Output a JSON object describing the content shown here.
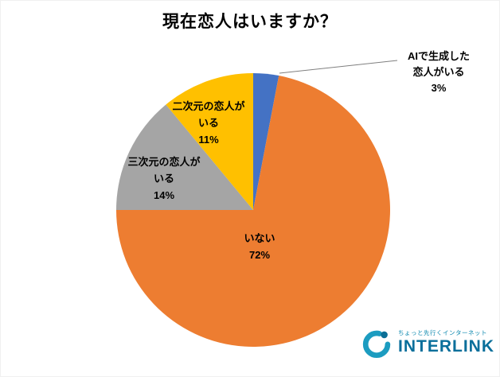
{
  "title": "現在恋人はいますか？",
  "chart_data": {
    "type": "pie",
    "title": "現在恋人はいますか？",
    "start_angle_deg": 0,
    "direction": "clockwise",
    "legend": "none",
    "slices": [
      {
        "label": "AIで生成した恋人がいる",
        "value": 3,
        "color": "#4472C4",
        "lines": [
          "AIで生成した",
          "恋人がいる",
          "3%"
        ]
      },
      {
        "label": "いない",
        "value": 72,
        "color": "#ED7D31",
        "lines": [
          "いない",
          "72%"
        ]
      },
      {
        "label": "三次元の恋人がいる",
        "value": 14,
        "color": "#A5A5A5",
        "lines": [
          "三次元の恋人が",
          "いる",
          "14%"
        ]
      },
      {
        "label": "二次元の恋人がいる",
        "value": 11,
        "color": "#FFC000",
        "lines": [
          "二次元の恋人が",
          "いる",
          "11%"
        ]
      }
    ]
  },
  "logo": {
    "tagline": "ちょっと先行くインターネット",
    "brand": "INTERLINK",
    "brand_color": "#0a6f9b",
    "mark_color": "#1c9cc0"
  }
}
